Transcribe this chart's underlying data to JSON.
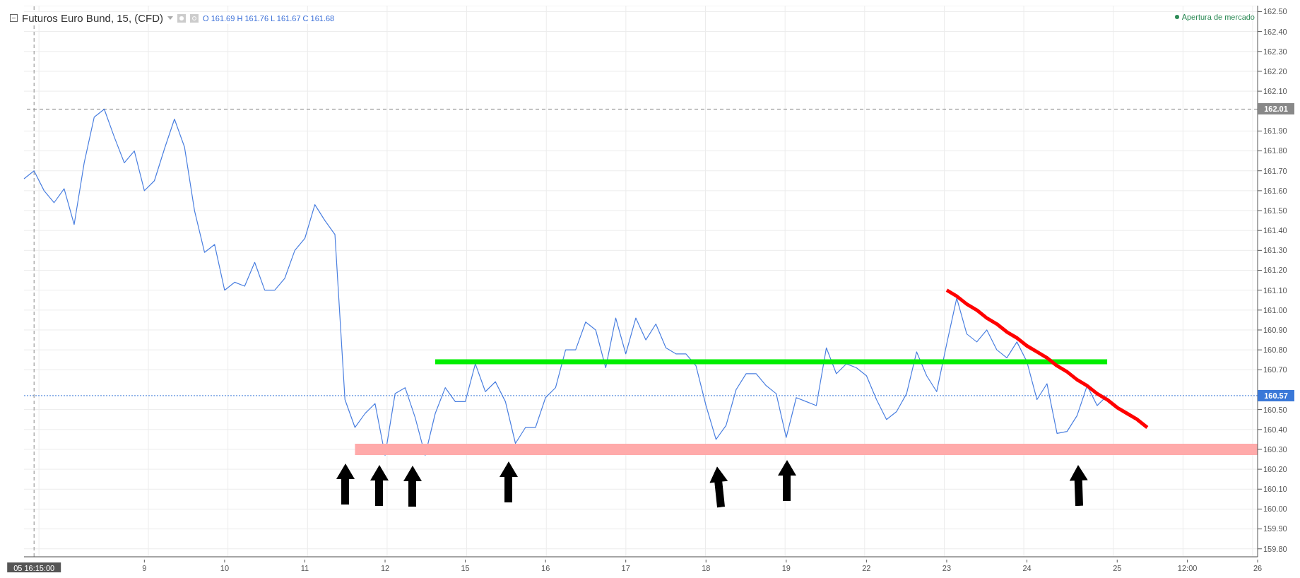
{
  "chart_data": {
    "type": "line",
    "title": "Futuros Euro Bund, 15, (CFD)",
    "annotations": [
      "O 161.69 H 161.76 L 161.67 C 161.68",
      "Apertura de mercado"
    ],
    "categories": [
      null,
      "05 16:15:00",
      null,
      null,
      null,
      null,
      null,
      null,
      null,
      null,
      null,
      null,
      "9",
      null,
      null,
      null,
      null,
      null,
      null,
      null,
      "10",
      null,
      null,
      null,
      null,
      null,
      null,
      null,
      "11",
      null,
      null,
      null,
      null,
      null,
      null,
      null,
      "12",
      null,
      null,
      null,
      null,
      null,
      null,
      null,
      "15",
      null,
      null,
      null,
      null,
      null,
      null,
      null,
      "16",
      null,
      null,
      null,
      null,
      null,
      null,
      null,
      "17",
      null,
      null,
      null,
      null,
      null,
      null,
      null,
      "18",
      null,
      null,
      null,
      null,
      null,
      null,
      null,
      "19",
      null,
      null,
      null,
      null,
      null,
      null,
      null,
      "22",
      null,
      null,
      null,
      null,
      null,
      null,
      null,
      "23",
      null,
      null,
      null,
      null,
      null,
      null,
      null,
      "24",
      null,
      null,
      null,
      null,
      null,
      null,
      null,
      null,
      "25",
      null,
      null,
      null,
      null,
      null,
      null,
      "12:00",
      null,
      null,
      null,
      null,
      null,
      null,
      "26"
    ],
    "ylim": [
      159.76,
      162.53
    ],
    "yticks": [
      {
        "value": 159.8,
        "label": "159.80"
      },
      {
        "value": 159.9,
        "label": "159.90"
      },
      {
        "value": 160,
        "label": "160.00"
      },
      {
        "value": 160.1,
        "label": "160.10"
      },
      {
        "value": 160.2,
        "label": "160.20"
      },
      {
        "value": 160.3,
        "label": "160.30"
      },
      {
        "value": 160.4,
        "label": "160.40"
      },
      {
        "value": 160.5,
        "label": "160.50"
      },
      {
        "value": 160.7,
        "label": "160.70"
      },
      {
        "value": 160.8,
        "label": "160.80"
      },
      {
        "value": 160.9,
        "label": "160.90"
      },
      {
        "value": 161,
        "label": "161.00"
      },
      {
        "value": 161.1,
        "label": "161.10"
      },
      {
        "value": 161.2,
        "label": "161.20"
      },
      {
        "value": 161.3,
        "label": "161.30"
      },
      {
        "value": 161.4,
        "label": "161.40"
      },
      {
        "value": 161.5,
        "label": "161.50"
      },
      {
        "value": 161.6,
        "label": "161.60"
      },
      {
        "value": 161.7,
        "label": "161.70"
      },
      {
        "value": 161.8,
        "label": "161.80"
      },
      {
        "value": 161.9,
        "label": "161.90"
      },
      {
        "value": 162.1,
        "label": "162.10"
      },
      {
        "value": 162.2,
        "label": "162.20"
      },
      {
        "value": 162.3,
        "label": "162.30"
      },
      {
        "value": 162.4,
        "label": "162.40"
      },
      {
        "value": 162.5,
        "label": "162.50"
      }
    ],
    "grid": true,
    "marker": "none",
    "line_style": "solid",
    "ref_lines": [
      {
        "axis": "y",
        "value": 162.01,
        "label": "162.01",
        "color": "#888888",
        "line_style": "dashed"
      },
      {
        "axis": "y",
        "value": 160.57,
        "label": "160.57",
        "color": "#3a78d8",
        "line_style": "dotted"
      },
      {
        "axis": "x",
        "value": "05 16:15:00",
        "color": "#888888",
        "line_style": "dashed"
      }
    ],
    "series": [
      {
        "color": "#4a7fe0",
        "values": [
          161.66,
          161.7,
          161.6,
          161.54,
          161.61,
          161.43,
          161.74,
          161.97,
          162.01,
          161.87,
          161.74,
          161.8,
          161.6,
          161.65,
          161.81,
          161.96,
          161.82,
          161.5,
          161.29,
          161.33,
          161.1,
          161.14,
          161.12,
          161.24,
          161.1,
          161.1,
          161.16,
          161.3,
          161.36,
          161.53,
          161.45,
          161.38,
          160.55,
          160.41,
          160.48,
          160.53,
          160.27,
          160.58,
          160.61,
          160.46,
          160.27,
          160.48,
          160.61,
          160.54,
          160.54,
          160.73,
          160.59,
          160.64,
          160.54,
          160.33,
          160.41,
          160.41,
          160.56,
          160.61,
          160.8,
          160.8,
          160.94,
          160.9,
          160.71,
          160.96,
          160.78,
          160.96,
          160.85,
          160.93,
          160.81,
          160.78,
          160.78,
          160.72,
          160.52,
          160.35,
          160.42,
          160.6,
          160.68,
          160.68,
          160.62,
          160.58,
          160.36,
          160.56,
          160.54,
          160.52,
          160.81,
          160.68,
          160.73,
          160.71,
          160.67,
          160.55,
          160.45,
          160.49,
          160.58,
          160.79,
          160.67,
          160.59,
          160.83,
          161.06,
          160.88,
          160.84,
          160.9,
          160.8,
          160.76,
          160.84,
          160.74,
          160.55,
          160.63,
          160.38,
          160.39,
          160.47,
          160.62,
          160.52,
          160.57,
          null,
          null,
          null,
          null,
          null,
          null,
          null,
          null,
          null,
          null,
          null,
          null,
          null,
          null,
          null
        ]
      },
      {
        "color": "#00ee00",
        "values": [
          null,
          null,
          null,
          null,
          null,
          null,
          null,
          null,
          null,
          null,
          null,
          null,
          null,
          null,
          null,
          null,
          null,
          null,
          null,
          null,
          null,
          null,
          null,
          null,
          null,
          null,
          null,
          null,
          null,
          null,
          null,
          null,
          null,
          null,
          null,
          null,
          null,
          null,
          null,
          null,
          null,
          160.74,
          160.74,
          160.74,
          160.74,
          160.74,
          160.74,
          160.74,
          160.74,
          160.74,
          160.74,
          160.74,
          160.74,
          160.74,
          160.74,
          160.74,
          160.74,
          160.74,
          160.74,
          160.74,
          160.74,
          160.74,
          160.74,
          160.74,
          160.74,
          160.74,
          160.74,
          160.74,
          160.74,
          160.74,
          160.74,
          160.74,
          160.74,
          160.74,
          160.74,
          160.74,
          160.74,
          160.74,
          160.74,
          160.74,
          160.74,
          160.74,
          160.74,
          160.74,
          160.74,
          160.74,
          160.74,
          160.74,
          160.74,
          160.74,
          160.74,
          160.74,
          160.74,
          160.74,
          160.74,
          160.74,
          160.74,
          160.74,
          160.74,
          160.74,
          160.74,
          160.74,
          160.74,
          160.74,
          160.74,
          160.74,
          160.74,
          160.74,
          160.74,
          null,
          null,
          null,
          null,
          null,
          null,
          null,
          null,
          null,
          null,
          null,
          null,
          null,
          null,
          null
        ]
      },
      {
        "color": "#ff0000",
        "values": [
          null,
          null,
          null,
          null,
          null,
          null,
          null,
          null,
          null,
          null,
          null,
          null,
          null,
          null,
          null,
          null,
          null,
          null,
          null,
          null,
          null,
          null,
          null,
          null,
          null,
          null,
          null,
          null,
          null,
          null,
          null,
          null,
          null,
          null,
          null,
          null,
          null,
          null,
          null,
          null,
          null,
          null,
          null,
          null,
          null,
          null,
          null,
          null,
          null,
          null,
          null,
          null,
          null,
          null,
          null,
          null,
          null,
          null,
          null,
          null,
          null,
          null,
          null,
          null,
          null,
          null,
          null,
          null,
          null,
          null,
          null,
          null,
          null,
          null,
          null,
          null,
          null,
          null,
          null,
          null,
          null,
          null,
          null,
          null,
          null,
          null,
          null,
          null,
          null,
          null,
          null,
          null,
          161.1,
          161.07,
          161.03,
          161.0,
          160.96,
          160.93,
          160.89,
          160.86,
          160.82,
          160.79,
          160.76,
          160.72,
          160.69,
          160.65,
          160.62,
          160.58,
          160.55,
          160.51,
          160.48,
          160.45,
          160.41,
          null,
          null,
          null,
          null,
          null,
          null,
          null,
          null,
          null,
          null,
          null
        ]
      },
      {
        "color": "#ffaaaa",
        "values": [
          null,
          null,
          null,
          null,
          null,
          null,
          null,
          null,
          null,
          null,
          null,
          null,
          null,
          null,
          null,
          null,
          null,
          null,
          null,
          null,
          null,
          null,
          null,
          null,
          null,
          null,
          null,
          null,
          null,
          null,
          null,
          null,
          null,
          160.3,
          160.3,
          160.3,
          160.3,
          160.3,
          160.3,
          160.3,
          160.3,
          160.3,
          160.3,
          160.3,
          160.3,
          160.3,
          160.3,
          160.3,
          160.3,
          160.3,
          160.3,
          160.3,
          160.3,
          160.3,
          160.3,
          160.3,
          160.3,
          160.3,
          160.3,
          160.3,
          160.3,
          160.3,
          160.3,
          160.3,
          160.3,
          160.3,
          160.3,
          160.3,
          160.3,
          160.3,
          160.3,
          160.3,
          160.3,
          160.3,
          160.3,
          160.3,
          160.3,
          160.3,
          160.3,
          160.3,
          160.3,
          160.3,
          160.3,
          160.3,
          160.3,
          160.3,
          160.3,
          160.3,
          160.3,
          160.3,
          160.3,
          160.3,
          160.3,
          160.3,
          160.3,
          160.3,
          160.3,
          160.3,
          160.3,
          160.3,
          160.3,
          160.3,
          160.3,
          160.3,
          160.3,
          160.3,
          160.3,
          160.3,
          160.3,
          160.3,
          160.3,
          160.3,
          160.3,
          160.3,
          160.3,
          160.3,
          160.3,
          160.3,
          160.3,
          160.3,
          160.3,
          160.3,
          160.3,
          160.3
        ]
      }
    ]
  }
}
